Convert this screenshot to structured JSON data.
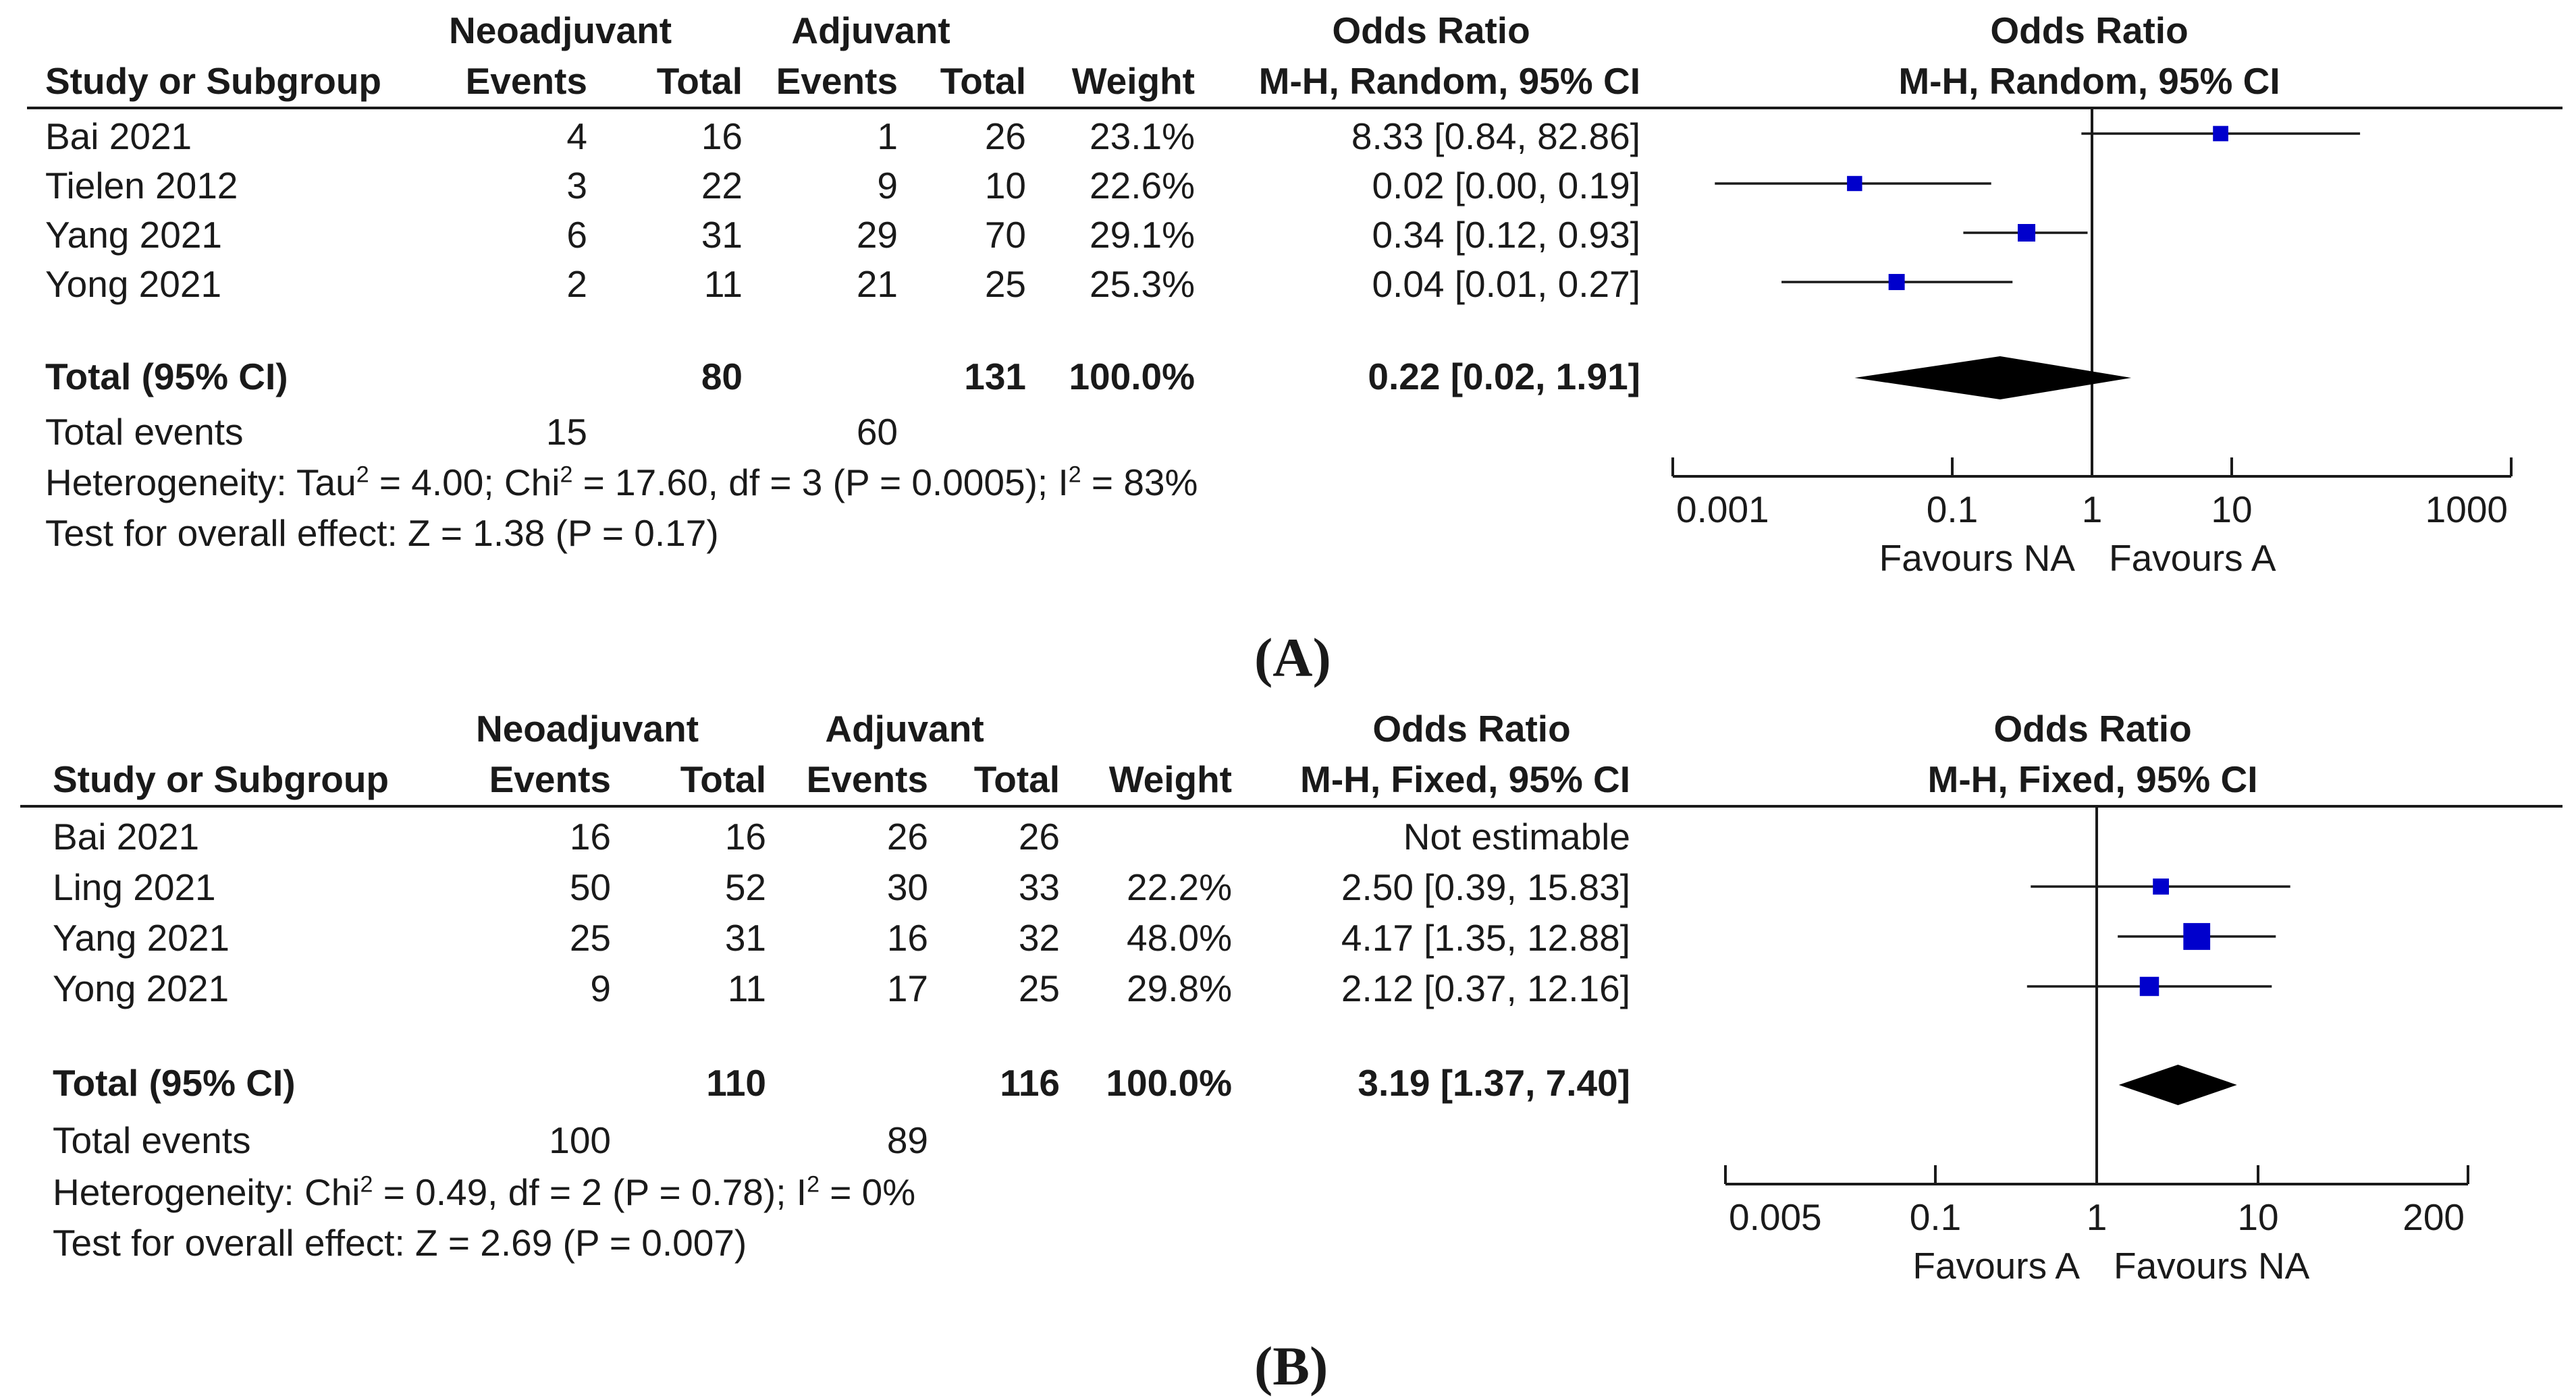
{
  "chart_data": [
    {
      "type": "forest",
      "panel_label": "(A)",
      "headers": {
        "group1": "Neoadjuvant",
        "group2": "Adjuvant",
        "study": "Study or Subgroup",
        "events": "Events",
        "total": "Total",
        "weight": "Weight",
        "or_title": "Odds Ratio",
        "or_method": "M-H, Random, 95% CI",
        "plot_title": "Odds Ratio",
        "plot_method": "M-H, Random, 95% CI"
      },
      "studies": [
        {
          "name": "Bai 2021",
          "e1": "4",
          "t1": "16",
          "e2": "1",
          "t2": "26",
          "weight": "23.1%",
          "ci_text": "8.33 [0.84, 82.86]",
          "or": 8.33,
          "lo": 0.84,
          "hi": 82.86,
          "w": 23.1
        },
        {
          "name": "Tielen 2012",
          "e1": "3",
          "t1": "22",
          "e2": "9",
          "t2": "10",
          "weight": "22.6%",
          "ci_text": "0.02 [0.00, 0.19]",
          "or": 0.02,
          "lo": 0.002,
          "hi": 0.19,
          "w": 22.6
        },
        {
          "name": "Yang 2021",
          "e1": "6",
          "t1": "31",
          "e2": "29",
          "t2": "70",
          "weight": "29.1%",
          "ci_text": "0.34 [0.12, 0.93]",
          "or": 0.34,
          "lo": 0.12,
          "hi": 0.93,
          "w": 29.1
        },
        {
          "name": "Yong 2021",
          "e1": "2",
          "t1": "11",
          "e2": "21",
          "t2": "25",
          "weight": "25.3%",
          "ci_text": "0.04 [0.01, 0.27]",
          "or": 0.04,
          "lo": 0.006,
          "hi": 0.27,
          "w": 25.3
        }
      ],
      "total": {
        "label": "Total (95% CI)",
        "t1": "80",
        "t2": "131",
        "weight": "100.0%",
        "ci_text": "0.22 [0.02, 1.91]",
        "or": 0.22,
        "lo": 0.02,
        "hi": 1.91
      },
      "total_events": {
        "label": "Total events",
        "e1": "15",
        "e2": "60"
      },
      "heterogeneity": {
        "prefix": "Heterogeneity: Tau",
        "mid": " = 4.00; Chi",
        "mid2": " = 17.60, df = 3 (P = 0.0005); I",
        "end": " = 83%",
        "sup": "2"
      },
      "overall_effect": "Test for overall effect: Z = 1.38 (P = 0.17)",
      "axis": {
        "ticks": [
          0.001,
          0.1,
          1,
          10,
          1000
        ],
        "tick_labels": [
          "0.001",
          "0.1",
          "1",
          "10",
          "1000"
        ],
        "min": 0.001,
        "max": 1000
      },
      "favours_left": "Favours NA",
      "favours_right": "Favours A",
      "marker_color": "#0000cc"
    },
    {
      "type": "forest",
      "panel_label": "(B)",
      "headers": {
        "group1": "Neoadjuvant",
        "group2": "Adjuvant",
        "study": "Study or Subgroup",
        "events": "Events",
        "total": "Total",
        "weight": "Weight",
        "or_title": "Odds Ratio",
        "or_method": "M-H, Fixed, 95% CI",
        "plot_title": "Odds Ratio",
        "plot_method": "M-H, Fixed, 95% CI"
      },
      "studies": [
        {
          "name": "Bai 2021",
          "e1": "16",
          "t1": "16",
          "e2": "26",
          "t2": "26",
          "weight": "",
          "ci_text": "Not estimable",
          "or": null,
          "lo": null,
          "hi": null,
          "w": 0
        },
        {
          "name": "Ling 2021",
          "e1": "50",
          "t1": "52",
          "e2": "30",
          "t2": "33",
          "weight": "22.2%",
          "ci_text": "2.50 [0.39, 15.83]",
          "or": 2.5,
          "lo": 0.39,
          "hi": 15.83,
          "w": 22.2
        },
        {
          "name": "Yang 2021",
          "e1": "25",
          "t1": "31",
          "e2": "16",
          "t2": "32",
          "weight": "48.0%",
          "ci_text": "4.17 [1.35, 12.88]",
          "or": 4.17,
          "lo": 1.35,
          "hi": 12.88,
          "w": 48.0
        },
        {
          "name": "Yong 2021",
          "e1": "9",
          "t1": "11",
          "e2": "17",
          "t2": "25",
          "weight": "29.8%",
          "ci_text": "2.12 [0.37, 12.16]",
          "or": 2.12,
          "lo": 0.37,
          "hi": 12.16,
          "w": 29.8
        }
      ],
      "total": {
        "label": "Total (95% CI)",
        "t1": "110",
        "t2": "116",
        "weight": "100.0%",
        "ci_text": "3.19 [1.37, 7.40]",
        "or": 3.19,
        "lo": 1.37,
        "hi": 7.4
      },
      "total_events": {
        "label": "Total events",
        "e1": "100",
        "e2": "89"
      },
      "heterogeneity": {
        "prefix": "Heterogeneity: Chi",
        "mid": " = 0.49, df = 2 (P = 0.78); I",
        "mid2": "",
        "end": " = 0%",
        "sup": "2"
      },
      "overall_effect": "Test for overall effect: Z = 2.69 (P = 0.007)",
      "axis": {
        "ticks": [
          0.005,
          0.1,
          1,
          10,
          200
        ],
        "tick_labels": [
          "0.005",
          "0.1",
          "1",
          "10",
          "200"
        ],
        "min": 0.005,
        "max": 200
      },
      "favours_left": "Favours A",
      "favours_right": "Favours NA",
      "marker_color": "#0000cc"
    }
  ]
}
